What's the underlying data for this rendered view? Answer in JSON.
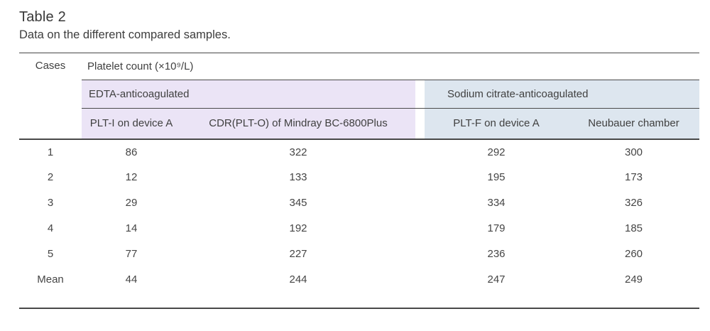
{
  "figure": {
    "title": "Table 2",
    "caption": "Data on the different compared samples.",
    "header": {
      "cases": "Cases",
      "unit": "Platelet count (×10⁹/L)",
      "groups": [
        {
          "label": "EDTA-anticoagulated",
          "bg": "#ebe4f6"
        },
        {
          "label": "Sodium citrate-anticoagulated",
          "bg": "#dde6ef"
        }
      ],
      "columns": [
        "PLT-I on device A",
        "CDR(PLT-O) of Mindray BC-6800Plus",
        "PLT-F on device A",
        "Neubauer chamber"
      ]
    },
    "rows": [
      [
        "1",
        "86",
        "322",
        "292",
        "300"
      ],
      [
        "2",
        "12",
        "133",
        "195",
        "173"
      ],
      [
        "3",
        "29",
        "345",
        "334",
        "326"
      ],
      [
        "4",
        "14",
        "192",
        "179",
        "185"
      ],
      [
        "5",
        "77",
        "227",
        "236",
        "260"
      ],
      [
        "Mean",
        "44",
        "244",
        "247",
        "249"
      ]
    ],
    "rule_color": "#484848"
  }
}
